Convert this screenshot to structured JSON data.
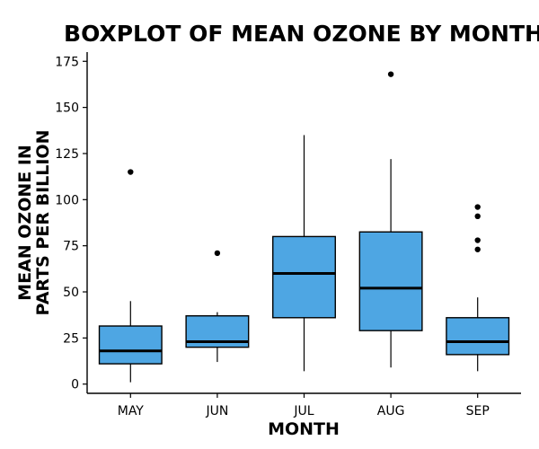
{
  "chart_data": {
    "type": "boxplot",
    "title": "BOXPLOT OF MEAN OZONE BY MONTH",
    "xlabel": "MONTH",
    "ylabel_lines": [
      "MEAN OZONE IN",
      "PARTS PER BILLION"
    ],
    "ylim": [
      -5,
      180
    ],
    "yticks": [
      0,
      25,
      50,
      75,
      100,
      125,
      150,
      175
    ],
    "grid": false,
    "box_color": "#4ea6e3",
    "categories": [
      "MAY",
      "JUN",
      "JUL",
      "AUG",
      "SEP"
    ],
    "boxes": [
      {
        "category": "MAY",
        "whisker_low": 1,
        "q1": 11,
        "median": 18,
        "q3": 31.5,
        "whisker_high": 45,
        "outliers": [
          115
        ]
      },
      {
        "category": "JUN",
        "whisker_low": 12,
        "q1": 20,
        "median": 23,
        "q3": 37,
        "whisker_high": 39,
        "outliers": [
          71
        ]
      },
      {
        "category": "JUL",
        "whisker_low": 7,
        "q1": 36,
        "median": 60,
        "q3": 80,
        "whisker_high": 135,
        "outliers": []
      },
      {
        "category": "AUG",
        "whisker_low": 9,
        "q1": 29,
        "median": 52,
        "q3": 82.5,
        "whisker_high": 122,
        "outliers": [
          168
        ]
      },
      {
        "category": "SEP",
        "whisker_low": 7,
        "q1": 16,
        "median": 23,
        "q3": 36,
        "whisker_high": 47,
        "outliers": [
          73,
          78,
          91,
          96
        ]
      }
    ]
  }
}
